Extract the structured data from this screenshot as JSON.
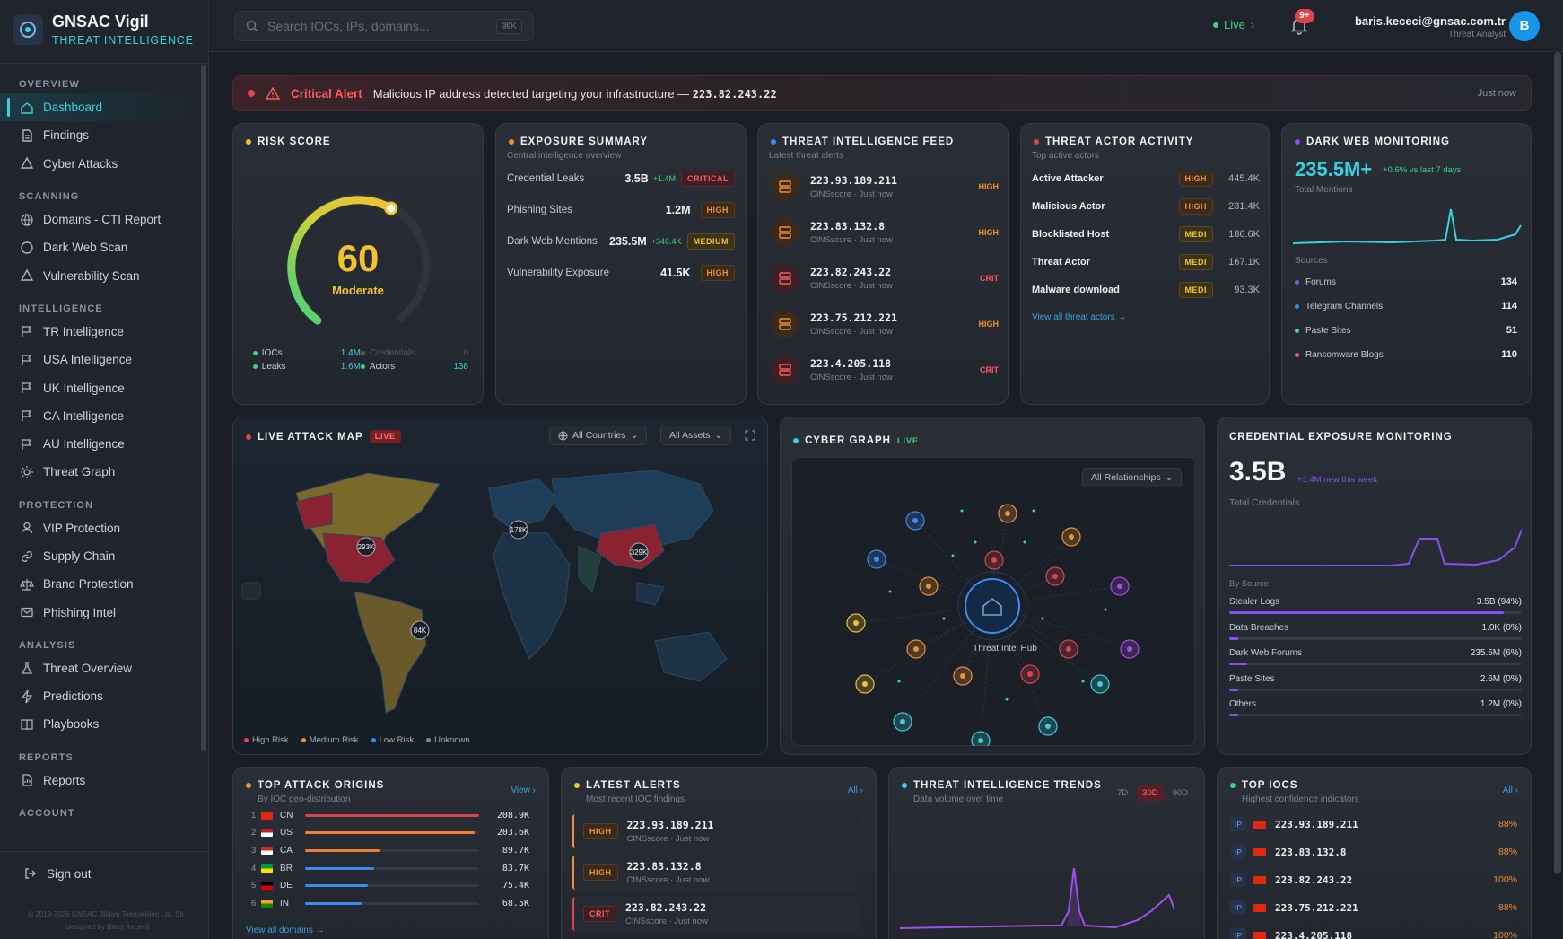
{
  "brand": {
    "title": "GNSAC Vigil",
    "subtitle": "THREAT INTELLIGENCE"
  },
  "nav": [
    {
      "section": "OVERVIEW",
      "items": [
        {
          "label": "Dashboard",
          "icon": "home-icon",
          "active": true
        },
        {
          "label": "Findings",
          "icon": "file-icon"
        },
        {
          "label": "Cyber Attacks",
          "icon": "warning-icon"
        }
      ]
    },
    {
      "section": "SCANNING",
      "items": [
        {
          "label": "Domains - CTI Report",
          "icon": "globe-icon"
        },
        {
          "label": "Dark Web Scan",
          "icon": "circle-icon"
        },
        {
          "label": "Vulnerability Scan",
          "icon": "warning-icon"
        }
      ]
    },
    {
      "section": "INTELLIGENCE",
      "items": [
        {
          "label": "TR Intelligence",
          "icon": "flag-icon"
        },
        {
          "label": "USA Intelligence",
          "icon": "flag-icon"
        },
        {
          "label": "UK Intelligence",
          "icon": "flag-icon"
        },
        {
          "label": "CA Intelligence",
          "icon": "flag-icon"
        },
        {
          "label": "AU Intelligence",
          "icon": "flag-icon"
        },
        {
          "label": "Threat Graph",
          "icon": "sun-icon"
        }
      ]
    },
    {
      "section": "PROTECTION",
      "items": [
        {
          "label": "VIP Protection",
          "icon": "user-icon"
        },
        {
          "label": "Supply Chain",
          "icon": "link-icon"
        },
        {
          "label": "Brand Protection",
          "icon": "scale-icon"
        },
        {
          "label": "Phishing Intel",
          "icon": "mail-icon"
        }
      ]
    },
    {
      "section": "ANALYSIS",
      "items": [
        {
          "label": "Threat Overview",
          "icon": "flask-icon"
        },
        {
          "label": "Predictions",
          "icon": "bolt-icon"
        },
        {
          "label": "Playbooks",
          "icon": "book-icon"
        }
      ]
    },
    {
      "section": "REPORTS",
      "items": [
        {
          "label": "Reports",
          "icon": "report-icon"
        }
      ]
    },
    {
      "section": "ACCOUNT",
      "items": []
    }
  ],
  "signout": "Sign out",
  "copyright": "© 2019-2026 GNSAC Bilişim Teknolojileri Ltd. Şti.",
  "credit": "(designed by Barış Keçeci)",
  "topbar": {
    "search_placeholder": "Search IOCs, IPs, domains...",
    "search_kbd": "⌘K",
    "live": "Live",
    "notif_badge": "9+",
    "user_email": "baris.kececi@gnsac.com.tr",
    "user_role": "Threat Analyst",
    "avatar": "B"
  },
  "alert": {
    "label": "Critical Alert",
    "message": "Malicious IP address detected targeting your infrastructure — ",
    "ip": "223.82.243.22",
    "time": "Just now"
  },
  "risk": {
    "title": "RISK SCORE",
    "score": "60",
    "level": "Moderate",
    "gauge_fraction": 0.6,
    "legend": [
      {
        "label": "IOCs",
        "value": "1.4M",
        "color": "#3ad37f",
        "dim": false
      },
      {
        "label": "Credentials",
        "value": "0",
        "color": "#555c67",
        "dim": true
      },
      {
        "label": "Leaks",
        "value": "1.6M",
        "color": "#3ad37f",
        "dim": false
      },
      {
        "label": "Actors",
        "value": "138",
        "color": "#3ad37f",
        "dim": false
      }
    ]
  },
  "exposure": {
    "title": "EXPOSURE SUMMARY",
    "subtitle": "Central intelligence overview",
    "rows": [
      {
        "label": "Credential Leaks",
        "value": "3.5B",
        "delta": "+1.4M",
        "tag": "CRITICAL",
        "sev": "crit"
      },
      {
        "label": "Phishing Sites",
        "value": "1.2M",
        "delta": "",
        "tag": "HIGH",
        "sev": "high"
      },
      {
        "label": "Dark Web Mentions",
        "value": "235.5M",
        "delta": "+346.4K",
        "tag": "MEDIUM",
        "sev": "med"
      },
      {
        "label": "Vulnerability Exposure",
        "value": "41.5K",
        "delta": "",
        "tag": "HIGH",
        "sev": "high"
      }
    ]
  },
  "feed": {
    "title": "THREAT INTELLIGENCE FEED",
    "subtitle": "Latest threat alerts",
    "rows": [
      {
        "ip": "223.93.189.211",
        "meta": "CINSscore · Just now",
        "sev": "HIGH"
      },
      {
        "ip": "223.83.132.8",
        "meta": "CINSscore · Just now",
        "sev": "HIGH"
      },
      {
        "ip": "223.82.243.22",
        "meta": "CINSscore · Just now",
        "sev": "CRIT"
      },
      {
        "ip": "223.75.212.221",
        "meta": "CINSscore · Just now",
        "sev": "HIGH"
      },
      {
        "ip": "223.4.205.118",
        "meta": "CINSscore · Just now",
        "sev": "CRIT"
      }
    ]
  },
  "actors": {
    "title": "THREAT ACTOR ACTIVITY",
    "subtitle": "Top active actors",
    "rows": [
      {
        "name": "Active Attacker",
        "tag": "HIGH",
        "sev": "high",
        "count": "445.4K"
      },
      {
        "name": "Malicious Actor",
        "tag": "HIGH",
        "sev": "high",
        "count": "231.4K"
      },
      {
        "name": "Blocklisted Host",
        "tag": "MEDI",
        "sev": "med",
        "count": "186.6K"
      },
      {
        "name": "Threat Actor",
        "tag": "MEDI",
        "sev": "med",
        "count": "167.1K"
      },
      {
        "name": "Malware download",
        "tag": "MEDI",
        "sev": "med",
        "count": "93.3K"
      }
    ],
    "link": "View all threat actors →"
  },
  "darkweb": {
    "title": "DARK WEB MONITORING",
    "value": "235.5M+",
    "delta": "+0.6% vs last 7 days",
    "caption": "Total Mentions",
    "sources_label": "Sources",
    "sources": [
      {
        "name": "Forums",
        "value": "134",
        "color": "#8a4ef0"
      },
      {
        "name": "Telegram Channels",
        "value": "114",
        "color": "#3a8cf0"
      },
      {
        "name": "Paste Sites",
        "value": "51",
        "color": "#3ad0dd"
      },
      {
        "name": "Ransomware Blogs",
        "value": "110",
        "color": "#f0605a"
      }
    ]
  },
  "map": {
    "title": "LIVE ATTACK MAP",
    "live": "LIVE",
    "filter_countries": "All Countries",
    "filter_assets": "All Assets",
    "markers": [
      {
        "label": "293K",
        "region": "north-america"
      },
      {
        "label": "178K",
        "region": "europe"
      },
      {
        "label": "329K",
        "region": "china"
      },
      {
        "label": "84K",
        "region": "brazil"
      }
    ],
    "legend": [
      {
        "label": "High Risk",
        "color": "#e0434c"
      },
      {
        "label": "Medium Risk",
        "color": "#f0902f"
      },
      {
        "label": "Low Risk",
        "color": "#3a8cf0"
      },
      {
        "label": "Unknown",
        "color": "#7c8390"
      }
    ]
  },
  "graph": {
    "title": "CYBER GRAPH",
    "live": "LIVE",
    "filter": "All Relationships",
    "hub": "Threat Intel Hub"
  },
  "credential": {
    "title": "CREDENTIAL EXPOSURE MONITORING",
    "value": "3.5B",
    "delta": "+1.4M new this week",
    "caption": "Total Credentials",
    "by_source": "By Source",
    "rows": [
      {
        "name": "Stealer Logs",
        "value": "3.5B (94%)",
        "pct": 94
      },
      {
        "name": "Data Breaches",
        "value": "1.0K (0%)",
        "pct": 3
      },
      {
        "name": "Dark Web Forums",
        "value": "235.5M (6%)",
        "pct": 6
      },
      {
        "name": "Paste Sites",
        "value": "2.6M (0%)",
        "pct": 3
      },
      {
        "name": "Others",
        "value": "1.2M (0%)",
        "pct": 3
      }
    ]
  },
  "origins": {
    "title": "TOP ATTACK ORIGINS",
    "subtitle": "By IOC geo-distribution",
    "action": "View",
    "rows": [
      {
        "rank": "1",
        "cc": "CN",
        "value": "208.9K",
        "num": 208.9,
        "color": "#e0434c"
      },
      {
        "rank": "2",
        "cc": "US",
        "value": "203.6K",
        "num": 203.6,
        "color": "#f0802f"
      },
      {
        "rank": "3",
        "cc": "CA",
        "value": "89.7K",
        "num": 89.7,
        "color": "#f0802f"
      },
      {
        "rank": "4",
        "cc": "BR",
        "value": "83.7K",
        "num": 83.7,
        "color": "#3a8cf0"
      },
      {
        "rank": "5",
        "cc": "DE",
        "value": "75.4K",
        "num": 75.4,
        "color": "#3a8cf0"
      },
      {
        "rank": "6",
        "cc": "IN",
        "value": "68.5K",
        "num": 68.5,
        "color": "#3a8cf0"
      }
    ],
    "link": "View all domains →"
  },
  "latest": {
    "title": "LATEST ALERTS",
    "subtitle": "Most recent IOC findings",
    "action": "All",
    "rows": [
      {
        "sev": "HIGH",
        "ip": "223.93.189.211",
        "meta": "CINSscore · Just now",
        "kind": "high"
      },
      {
        "sev": "HIGH",
        "ip": "223.83.132.8",
        "meta": "CINSscore · Just now",
        "kind": "high"
      },
      {
        "sev": "CRIT",
        "ip": "223.82.243.22",
        "meta": "CINSscore · Just now",
        "kind": "crit"
      }
    ]
  },
  "trends": {
    "title": "THREAT INTELLIGENCE TRENDS",
    "subtitle": "Data volume over time",
    "ranges": [
      "7D",
      "30D",
      "90D"
    ],
    "active_range": "30D"
  },
  "iocs": {
    "title": "TOP IOCS",
    "subtitle": "Highest confidence indicators",
    "action": "All",
    "rows": [
      {
        "type": "IP",
        "ip": "223.93.189.211",
        "pct": "88%"
      },
      {
        "type": "IP",
        "ip": "223.83.132.8",
        "pct": "88%"
      },
      {
        "type": "IP",
        "ip": "223.82.243.22",
        "pct": "100%"
      },
      {
        "type": "IP",
        "ip": "223.75.212.221",
        "pct": "88%"
      },
      {
        "type": "IP",
        "ip": "223.4.205.118",
        "pct": "100%"
      }
    ]
  },
  "colors": {
    "accent": "#3ad0dd",
    "critical": "#e0434c",
    "high": "#f0902f",
    "medium": "#f1c232",
    "purple": "#8a4ef0"
  }
}
